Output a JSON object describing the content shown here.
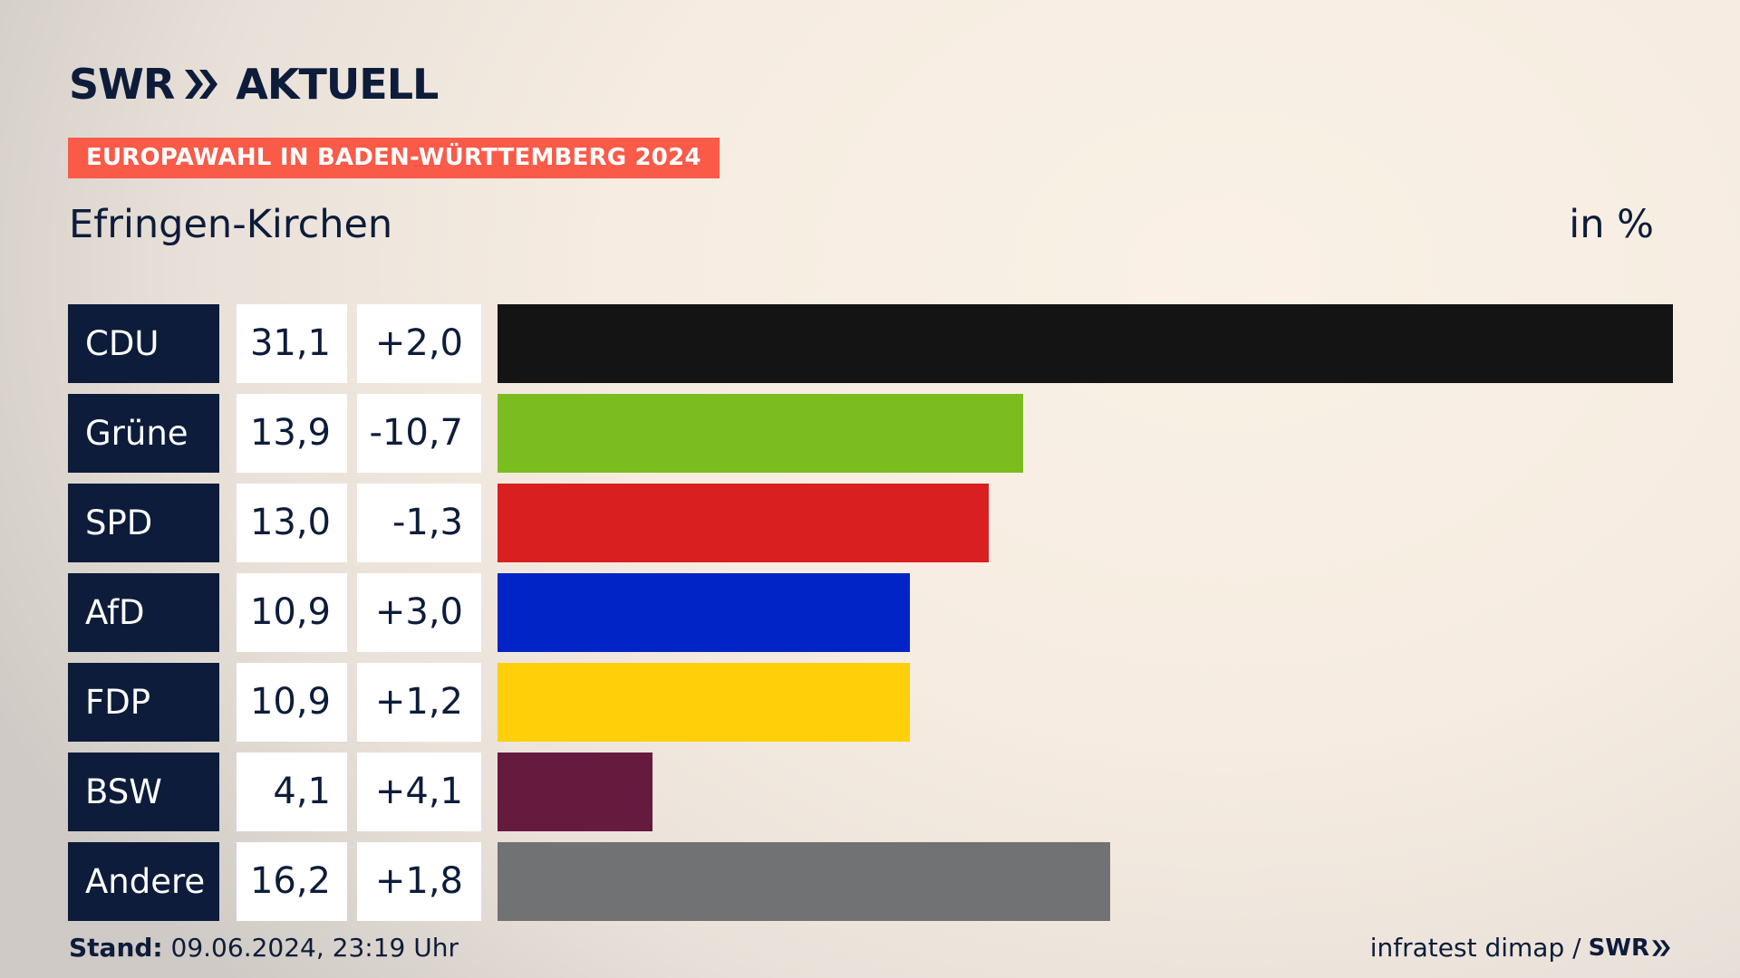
{
  "brand": {
    "logo_left": "SWR",
    "logo_right": "AKTUELL"
  },
  "header": {
    "tag": "EUROPAWAHL IN BADEN-WÜRTTEMBERG 2024",
    "subtitle": "Efringen-Kirchen",
    "unit": "in %"
  },
  "chart_data": {
    "type": "bar",
    "orientation": "horizontal",
    "categories": [
      "CDU",
      "Grüne",
      "SPD",
      "AfD",
      "FDP",
      "BSW",
      "Andere"
    ],
    "values": [
      31.1,
      13.9,
      13.0,
      10.9,
      10.9,
      4.1,
      16.2
    ],
    "value_labels": [
      "31,1",
      "13,9",
      "13,0",
      "10,9",
      "10,9",
      "4,1",
      "16,2"
    ],
    "diff_labels": [
      "+2,0",
      "-10,7",
      "-1,3",
      "+3,0",
      "+1,2",
      "+4,1",
      "+1,8"
    ],
    "colors": [
      "#141414",
      "#7bbd1e",
      "#d91f1f",
      "#0024c6",
      "#ffcf0a",
      "#661a3e",
      "#707274"
    ],
    "title": "Efringen-Kirchen",
    "ylabel": "in %",
    "xlim": [
      0,
      31.1
    ]
  },
  "footer": {
    "stand_label": "Stand:",
    "stand_value": "09.06.2024, 23:19 Uhr",
    "source": "infratest dimap /",
    "source_logo": "SWR"
  }
}
